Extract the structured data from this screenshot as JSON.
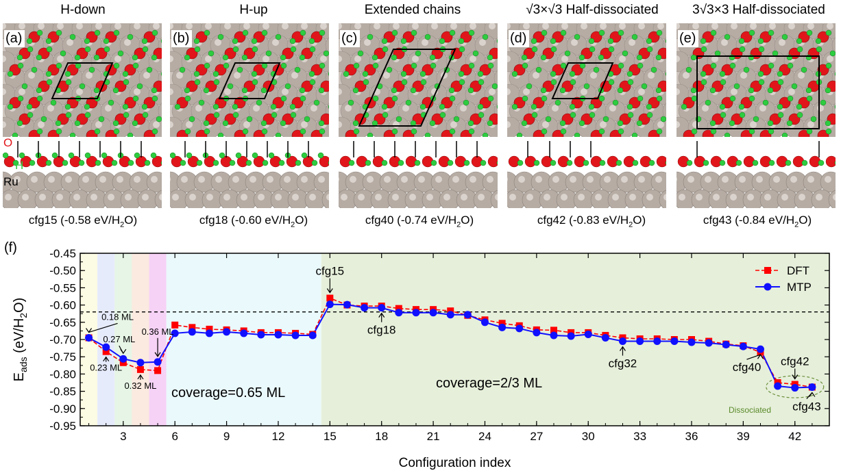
{
  "panels": [
    {
      "letter": "(a)",
      "title": "H-down",
      "caption_pre": "cfg15 (-0.58 eV/H",
      "caption_sub": "2",
      "caption_post": "O)"
    },
    {
      "letter": "(b)",
      "title": "H-up",
      "caption_pre": "cfg18 (-0.60 eV/H",
      "caption_sub": "2",
      "caption_post": "O)"
    },
    {
      "letter": "(c)",
      "title": "Extended chains",
      "caption_pre": "cfg40 (-0.74 eV/H",
      "caption_sub": "2",
      "caption_post": "O)"
    },
    {
      "letter": "(d)",
      "title": "√3×√3 Half-dissociated",
      "caption_pre": "cfg42 (-0.83 eV/H",
      "caption_sub": "2",
      "caption_post": "O)"
    },
    {
      "letter": "(e)",
      "title": "3√3×3 Half-dissociated",
      "caption_pre": "cfg43 (-0.84 eV/H",
      "caption_sub": "2",
      "caption_post": "O)"
    }
  ],
  "atom_labels": {
    "O": "O",
    "H": "H",
    "Ru": "Ru"
  },
  "colors": {
    "O": "#e0161b",
    "H": "#2ecc40",
    "Ru": "#b6aca4",
    "dft": "#ff0000",
    "mtp": "#1010ff"
  },
  "chart_data": {
    "type": "line",
    "panel_label": "(f)",
    "xlabel": "Configuration index",
    "ylabel_main": "E",
    "ylabel_sub": "ads",
    "ylabel_unit_pre": "(eV/H",
    "ylabel_unit_sub": "2",
    "ylabel_unit_post": "O)",
    "xlim": [
      0.5,
      44
    ],
    "ylim": [
      -0.95,
      -0.45
    ],
    "xticks": [
      3,
      6,
      9,
      12,
      15,
      18,
      21,
      24,
      27,
      30,
      33,
      36,
      39,
      42
    ],
    "yticks": [
      -0.45,
      -0.5,
      -0.55,
      -0.6,
      -0.65,
      -0.7,
      -0.75,
      -0.8,
      -0.85,
      -0.9,
      -0.95
    ],
    "reference_line": -0.62,
    "legend_position": "top-right",
    "bands": [
      {
        "x0": 0.5,
        "x1": 1.5,
        "color": "#fcfbe3"
      },
      {
        "x0": 1.5,
        "x1": 2.5,
        "color": "#e6ebfc"
      },
      {
        "x0": 2.5,
        "x1": 3.5,
        "color": "#e6f5e6"
      },
      {
        "x0": 3.5,
        "x1": 4.5,
        "color": "#fbeae0"
      },
      {
        "x0": 4.5,
        "x1": 5.5,
        "color": "#f6d2f6"
      },
      {
        "x0": 5.5,
        "x1": 14.5,
        "color": "#eaf9fc"
      },
      {
        "x0": 14.5,
        "x1": 44,
        "color": "#e6efda"
      }
    ],
    "x": [
      1,
      2,
      3,
      4,
      5,
      6,
      7,
      8,
      9,
      10,
      11,
      12,
      13,
      14,
      15,
      16,
      17,
      18,
      19,
      20,
      21,
      22,
      23,
      24,
      25,
      26,
      27,
      28,
      29,
      30,
      31,
      32,
      33,
      34,
      35,
      36,
      37,
      38,
      39,
      40,
      41,
      42,
      43
    ],
    "series": [
      {
        "name": "DFT",
        "values": [
          -0.695,
          -0.735,
          -0.767,
          -0.787,
          -0.79,
          -0.658,
          -0.665,
          -0.67,
          -0.672,
          -0.675,
          -0.68,
          -0.68,
          -0.682,
          -0.685,
          -0.58,
          -0.6,
          -0.603,
          -0.603,
          -0.61,
          -0.613,
          -0.613,
          -0.617,
          -0.63,
          -0.643,
          -0.653,
          -0.66,
          -0.672,
          -0.673,
          -0.68,
          -0.68,
          -0.688,
          -0.695,
          -0.698,
          -0.698,
          -0.7,
          -0.7,
          -0.705,
          -0.713,
          -0.718,
          -0.737,
          -0.825,
          -0.83,
          -0.838
        ]
      },
      {
        "name": "MTP",
        "values": [
          -0.695,
          -0.722,
          -0.756,
          -0.767,
          -0.765,
          -0.682,
          -0.678,
          -0.682,
          -0.678,
          -0.682,
          -0.686,
          -0.686,
          -0.688,
          -0.688,
          -0.598,
          -0.599,
          -0.608,
          -0.608,
          -0.622,
          -0.622,
          -0.622,
          -0.628,
          -0.628,
          -0.65,
          -0.665,
          -0.668,
          -0.68,
          -0.688,
          -0.69,
          -0.685,
          -0.695,
          -0.705,
          -0.705,
          -0.705,
          -0.705,
          -0.708,
          -0.71,
          -0.715,
          -0.72,
          -0.728,
          -0.835,
          -0.84,
          -0.838
        ]
      }
    ],
    "annotations": [
      {
        "text": "cfg15",
        "x": 15,
        "y": -0.58
      },
      {
        "text": "cfg18",
        "x": 18,
        "y": -0.608
      },
      {
        "text": "cfg32",
        "x": 32,
        "y": -0.705
      },
      {
        "text": "cfg40",
        "x": 40,
        "y": -0.728
      },
      {
        "text": "cfg42",
        "x": 42,
        "y": -0.83
      },
      {
        "text": "cfg43",
        "x": 43,
        "y": -0.838
      },
      {
        "text": "0.18 ML",
        "x": 1,
        "y": -0.695
      },
      {
        "text": "0.23 ML",
        "x": 2,
        "y": -0.735
      },
      {
        "text": "0.27 ML",
        "x": 3,
        "y": -0.756
      },
      {
        "text": "0.32 ML",
        "x": 4,
        "y": -0.787
      },
      {
        "text": "0.36 ML",
        "x": 5,
        "y": -0.765
      }
    ],
    "region_labels": [
      {
        "text": "coverage=0.65 ML"
      },
      {
        "text": "coverage=2/3 ML"
      },
      {
        "text": "Dissociated"
      }
    ]
  }
}
